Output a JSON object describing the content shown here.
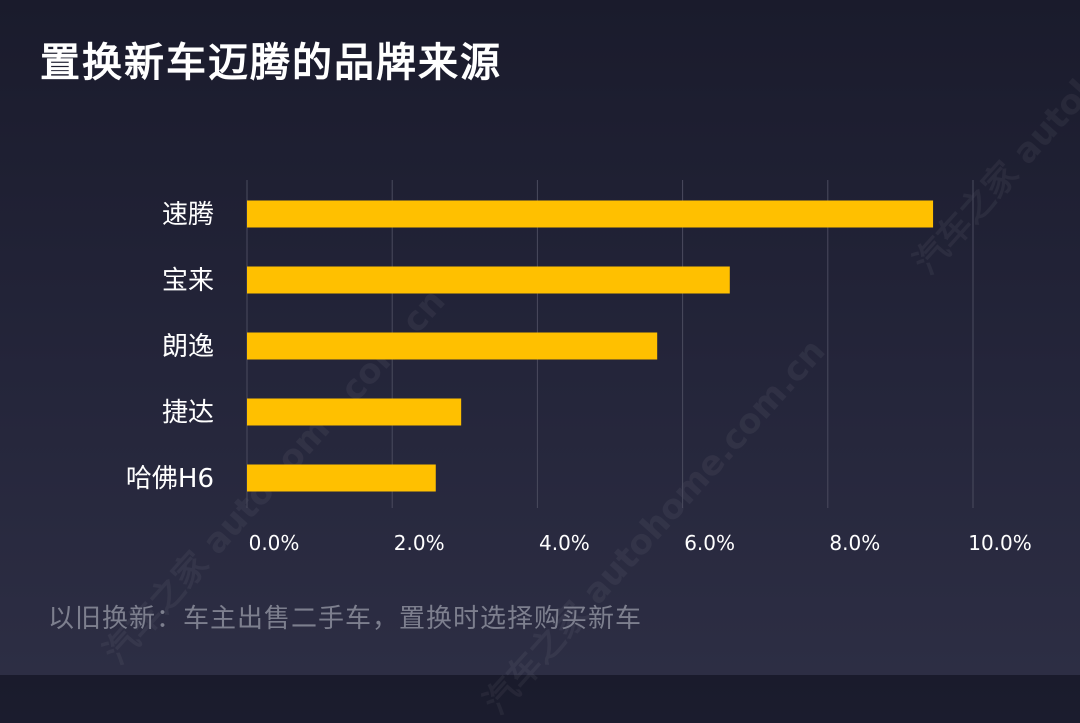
{
  "title": "置换新车迈腾的品牌来源",
  "footnote": "以旧换新：车主出售二手车，置换时选择购买新车",
  "watermark": "汽车之家 autohome.com.cn",
  "colors": {
    "bar": "#ffc000",
    "grid": "#4a4b5e",
    "label": "#ffffff"
  },
  "chart_data": {
    "type": "bar",
    "orientation": "horizontal",
    "categories": [
      "速腾",
      "宝来",
      "朗逸",
      "捷达",
      "哈佛H6"
    ],
    "values": [
      9.45,
      6.65,
      5.65,
      2.95,
      2.6
    ],
    "unit": "%",
    "xlim": [
      0,
      10
    ],
    "x_ticks": [
      0,
      2,
      4,
      6,
      8,
      10
    ],
    "x_tick_labels": [
      "0.0%",
      "2.0%",
      "4.0%",
      "6.0%",
      "8.0%",
      "10.0%"
    ],
    "grid": "vertical"
  }
}
